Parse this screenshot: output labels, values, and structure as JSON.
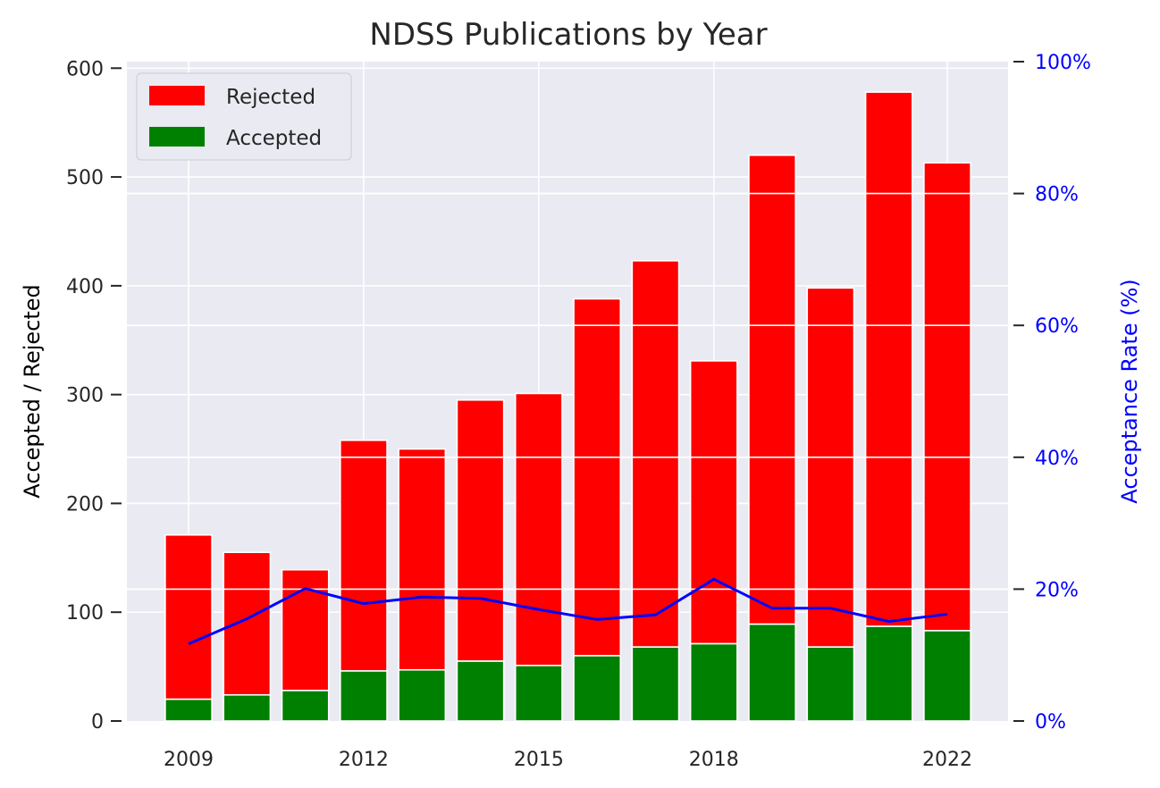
{
  "chart_data": {
    "type": "bar",
    "title": "NDSS Publications by Year",
    "ylabel": "Accepted / Rejected",
    "y2label": "Acceptance Rate (%)",
    "xlabel": "",
    "stacked": true,
    "x": [
      2009,
      2010,
      2011,
      2012,
      2013,
      2014,
      2015,
      2016,
      2017,
      2018,
      2019,
      2020,
      2021,
      2022
    ],
    "x_ticks": [
      "2009",
      "2012",
      "2015",
      "2018",
      "2022"
    ],
    "y_ticks": [
      "0",
      "100",
      "200",
      "300",
      "400",
      "500",
      "600"
    ],
    "y2_ticks": [
      "0%",
      "20%",
      "40%",
      "60%",
      "80%",
      "100%"
    ],
    "ylim": [
      0,
      606
    ],
    "y2lim": [
      0,
      100
    ],
    "series": [
      {
        "name": "Accepted",
        "color": "#008000",
        "values": [
          20,
          24,
          28,
          46,
          47,
          55,
          51,
          60,
          68,
          71,
          89,
          68,
          87,
          83
        ]
      },
      {
        "name": "Rejected",
        "color": "#ff0000",
        "values": [
          151,
          131,
          111,
          212,
          203,
          240,
          250,
          328,
          355,
          260,
          431,
          330,
          491,
          430
        ]
      }
    ],
    "line_series": {
      "color": "#0000ff",
      "axis": "right",
      "values": [
        11.7,
        15.5,
        20.1,
        17.8,
        18.8,
        18.6,
        16.9,
        15.4,
        16.1,
        21.5,
        17.1,
        17.1,
        15.1,
        16.2
      ]
    },
    "legend": {
      "placement": "top-left",
      "entries": [
        {
          "label": "Rejected",
          "color": "#ff0000"
        },
        {
          "label": "Accepted",
          "color": "#008000"
        }
      ]
    },
    "grid": true,
    "colors": {
      "plot_bg": "#eaeaf2",
      "grid": "#ffffff",
      "right_axis": "#0000ff",
      "text": "#262626"
    }
  }
}
